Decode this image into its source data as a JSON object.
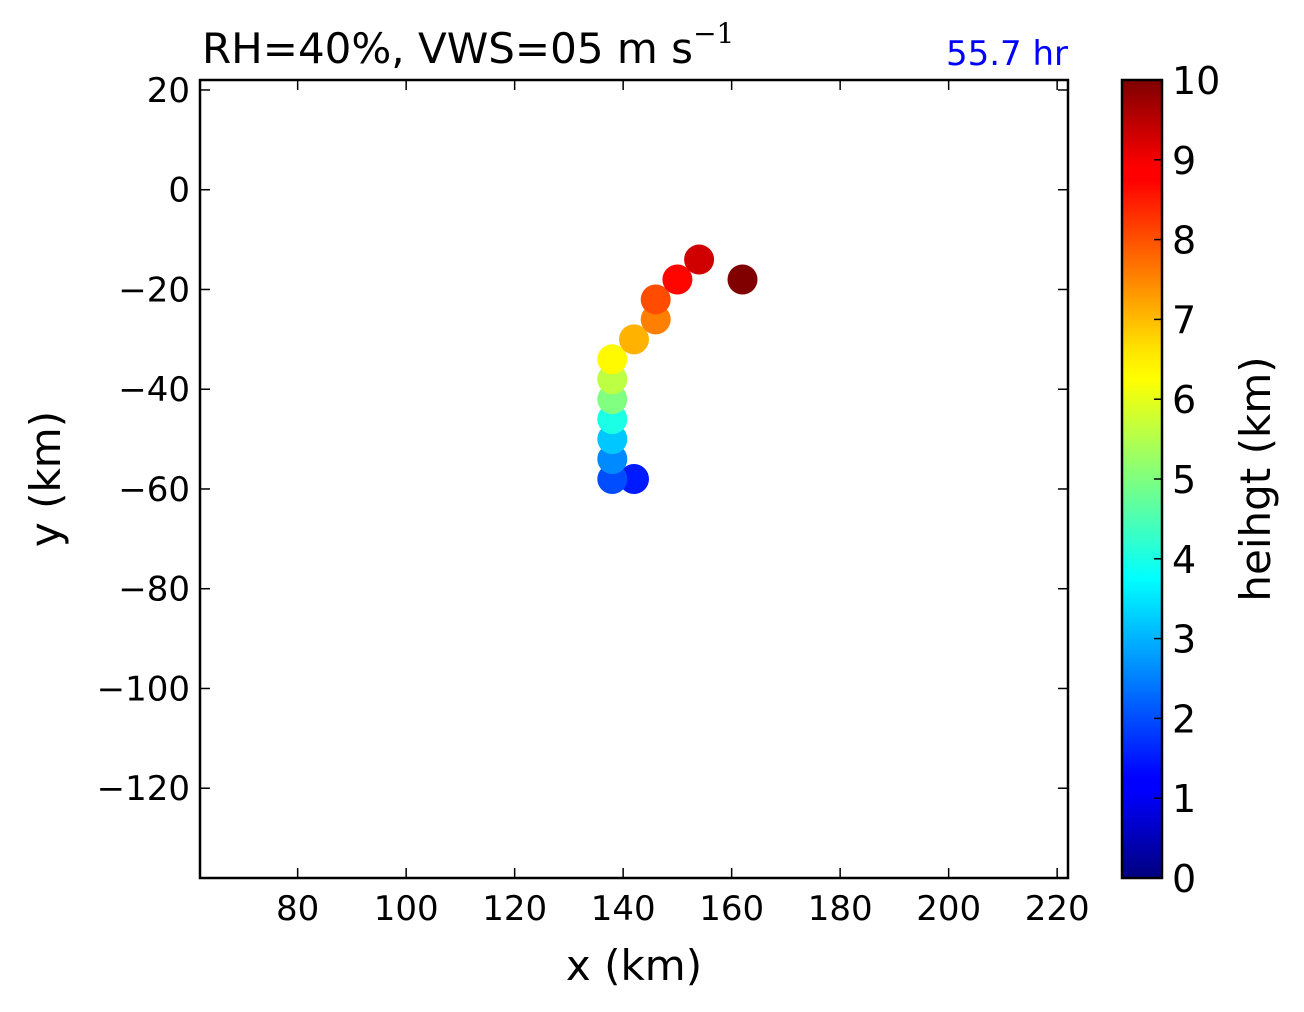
{
  "chart_data": {
    "type": "scatter",
    "title_main": "RH=40%, VWS=05 m s",
    "title_superscript": "−1",
    "annotation": "55.7 hr",
    "annotation_color": "#0000ff",
    "xlabel": "x (km)",
    "ylabel": "y (km)",
    "xlim": [
      62,
      222
    ],
    "ylim": [
      -138,
      22
    ],
    "xticks": [
      80,
      100,
      120,
      140,
      160,
      180,
      200,
      220
    ],
    "yticks": [
      20,
      0,
      -20,
      -40,
      -60,
      -80,
      -100,
      -120
    ],
    "xtick_labels": [
      "80",
      "100",
      "120",
      "140",
      "160",
      "180",
      "200",
      "220"
    ],
    "ytick_labels": [
      "20",
      "0",
      "−20",
      "−40",
      "−60",
      "−80",
      "−100",
      "−120"
    ],
    "grid": false,
    "colormap": "jet",
    "colorbar": {
      "label": "heihgt (km)",
      "range": [
        0,
        10
      ],
      "ticks": [
        0,
        1,
        2,
        3,
        4,
        5,
        6,
        7,
        8,
        9,
        10
      ],
      "tick_labels": [
        "0",
        "1",
        "2",
        "3",
        "4",
        "5",
        "6",
        "7",
        "8",
        "9",
        "10"
      ]
    },
    "points": [
      {
        "x": 142,
        "y": -58,
        "height": 1.5
      },
      {
        "x": 138,
        "y": -58,
        "height": 2.0
      },
      {
        "x": 138,
        "y": -54,
        "height": 2.6
      },
      {
        "x": 138,
        "y": -50,
        "height": 3.2
      },
      {
        "x": 138,
        "y": -46,
        "height": 4.0
      },
      {
        "x": 138,
        "y": -42,
        "height": 5.0
      },
      {
        "x": 138,
        "y": -38,
        "height": 5.6
      },
      {
        "x": 138,
        "y": -34,
        "height": 6.3
      },
      {
        "x": 142,
        "y": -30,
        "height": 7.0
      },
      {
        "x": 146,
        "y": -26,
        "height": 7.5
      },
      {
        "x": 146,
        "y": -22,
        "height": 8.0
      },
      {
        "x": 150,
        "y": -18,
        "height": 8.7
      },
      {
        "x": 154,
        "y": -14,
        "height": 9.2
      },
      {
        "x": 162,
        "y": -18,
        "height": 10.0
      }
    ]
  }
}
